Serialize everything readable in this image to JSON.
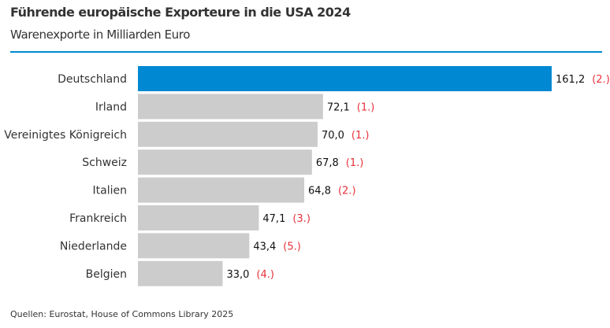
{
  "chart_data": {
    "type": "bar",
    "orientation": "horizontal",
    "title": "Führende europäische Exporteure in die USA 2024",
    "subtitle": "Warenexporte in Milliarden Euro",
    "categories": [
      "Deutschland",
      "Irland",
      "Vereinigtes Königreich",
      "Schweiz",
      "Italien",
      "Frankreich",
      "Niederlande",
      "Belgien"
    ],
    "values": [
      161.2,
      72.1,
      70.0,
      67.8,
      64.8,
      47.1,
      43.4,
      33.0
    ],
    "value_labels": [
      "161,2",
      "72,1",
      "70,0",
      "67,8",
      "64,8",
      "47,1",
      "43,4",
      "33,0"
    ],
    "ranks": [
      "(2.)",
      "(1.)",
      "(1.)",
      "(1.)",
      "(2.)",
      "(3.)",
      "(5.)",
      "(4.)"
    ],
    "xlim": [
      0,
      161.2
    ],
    "grid": false,
    "colors": {
      "highlight": "#0089d2",
      "default": "#cccccc",
      "rank": "#e8303a",
      "rule": "#0089d2"
    },
    "source": "Quellen: Eurostat, House of Commons Library 2025"
  }
}
